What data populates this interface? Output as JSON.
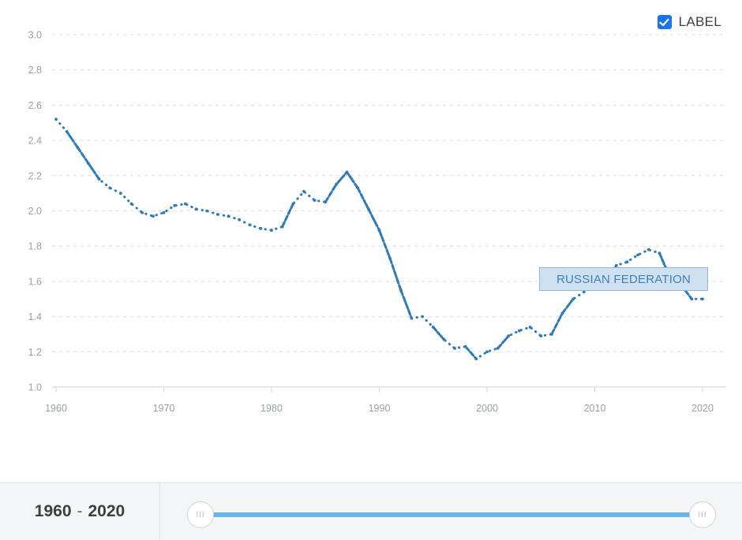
{
  "controls": {
    "label_toggle_text": "LABEL",
    "label_checked": true
  },
  "footer": {
    "range_start": "1960",
    "range_separator": "-",
    "range_end": "2020"
  },
  "colors": {
    "series": "#2f7ab9",
    "accent": "#1a73e8",
    "slider": "#6db3e8"
  },
  "chart_data": {
    "type": "line",
    "title": "",
    "xlabel": "",
    "ylabel": "",
    "xlim": [
      1960,
      2020
    ],
    "ylim": [
      1.0,
      3.0
    ],
    "xticks": [
      1960,
      1970,
      1980,
      1990,
      2000,
      2010,
      2020
    ],
    "yticks": [
      "1.0",
      "1.2",
      "1.4",
      "1.6",
      "1.8",
      "2.0",
      "2.2",
      "2.4",
      "2.6",
      "2.8",
      "3.0"
    ],
    "grid": true,
    "series": [
      {
        "name": "RUSSIAN FEDERATION",
        "x": [
          1960,
          1961,
          1962,
          1963,
          1964,
          1965,
          1966,
          1967,
          1968,
          1969,
          1970,
          1971,
          1972,
          1973,
          1974,
          1975,
          1976,
          1977,
          1978,
          1979,
          1980,
          1981,
          1982,
          1983,
          1984,
          1985,
          1986,
          1987,
          1988,
          1989,
          1990,
          1991,
          1992,
          1993,
          1994,
          1995,
          1996,
          1997,
          1998,
          1999,
          2000,
          2001,
          2002,
          2003,
          2004,
          2005,
          2006,
          2007,
          2008,
          2009,
          2010,
          2011,
          2012,
          2013,
          2014,
          2015,
          2016,
          2017,
          2018,
          2019,
          2020
        ],
        "values": [
          2.52,
          2.45,
          2.36,
          2.27,
          2.18,
          2.13,
          2.1,
          2.04,
          1.99,
          1.97,
          1.99,
          2.03,
          2.04,
          2.01,
          2.0,
          1.98,
          1.97,
          1.95,
          1.92,
          1.9,
          1.89,
          1.91,
          2.04,
          2.11,
          2.06,
          2.05,
          2.15,
          2.22,
          2.13,
          2.01,
          1.89,
          1.73,
          1.55,
          1.39,
          1.4,
          1.34,
          1.27,
          1.22,
          1.23,
          1.16,
          1.2,
          1.22,
          1.29,
          1.32,
          1.34,
          1.29,
          1.3,
          1.42,
          1.5,
          1.54,
          1.57,
          1.58,
          1.69,
          1.71,
          1.75,
          1.78,
          1.76,
          1.62,
          1.58,
          1.5,
          1.5
        ]
      }
    ]
  }
}
